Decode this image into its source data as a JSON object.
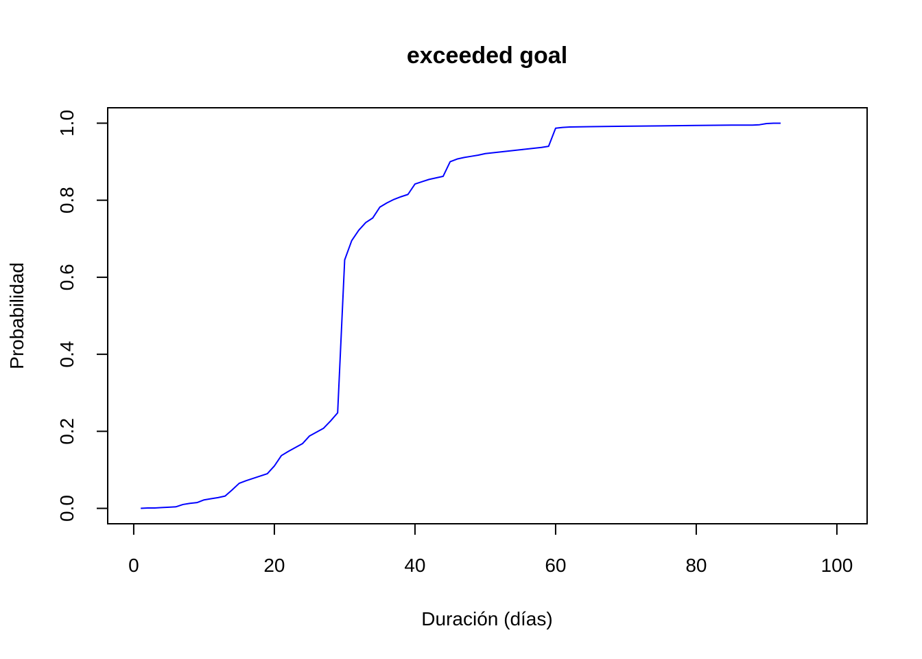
{
  "chart_data": {
    "type": "line",
    "title": "exceeded goal",
    "xlabel": "Duración (días)",
    "ylabel": "Probabilidad",
    "xlim": [
      -3.7,
      104.3
    ],
    "ylim": [
      -0.04,
      1.04
    ],
    "xticks": [
      0,
      20,
      40,
      60,
      80,
      100
    ],
    "xtick_labels": [
      "0",
      "20",
      "40",
      "60",
      "80",
      "100"
    ],
    "yticks": [
      0.0,
      0.2,
      0.4,
      0.6,
      0.8,
      1.0
    ],
    "ytick_labels": [
      "0.0",
      "0.2",
      "0.4",
      "0.6",
      "0.8",
      "1.0"
    ],
    "grid": false,
    "legend": "none",
    "series": [
      {
        "color": "#0000ff",
        "x": [
          1,
          2,
          3,
          4,
          5,
          6,
          7,
          8,
          9,
          10,
          11,
          12,
          13,
          14,
          15,
          16,
          17,
          18,
          19,
          20,
          21,
          22,
          23,
          24,
          25,
          26,
          27,
          28,
          29,
          30,
          31,
          32,
          33,
          34,
          35,
          36,
          37,
          38,
          39,
          40,
          41,
          42,
          43,
          44,
          45,
          46,
          47,
          48,
          49,
          50,
          51,
          52,
          53,
          54,
          55,
          56,
          57,
          58,
          59,
          60,
          61,
          62,
          65,
          70,
          75,
          80,
          85,
          88,
          89,
          90,
          91,
          92
        ],
        "y": [
          0.0,
          0.001,
          0.001,
          0.002,
          0.003,
          0.004,
          0.01,
          0.013,
          0.015,
          0.022,
          0.025,
          0.028,
          0.032,
          0.048,
          0.065,
          0.072,
          0.078,
          0.084,
          0.09,
          0.11,
          0.137,
          0.148,
          0.158,
          0.168,
          0.188,
          0.198,
          0.208,
          0.227,
          0.248,
          0.645,
          0.695,
          0.722,
          0.742,
          0.754,
          0.782,
          0.793,
          0.802,
          0.809,
          0.815,
          0.842,
          0.848,
          0.854,
          0.858,
          0.862,
          0.9,
          0.907,
          0.911,
          0.914,
          0.917,
          0.921,
          0.923,
          0.925,
          0.927,
          0.929,
          0.931,
          0.933,
          0.935,
          0.937,
          0.94,
          0.987,
          0.989,
          0.99,
          0.991,
          0.992,
          0.993,
          0.994,
          0.995,
          0.995,
          0.996,
          0.999,
          1.0,
          1.0
        ]
      }
    ]
  }
}
